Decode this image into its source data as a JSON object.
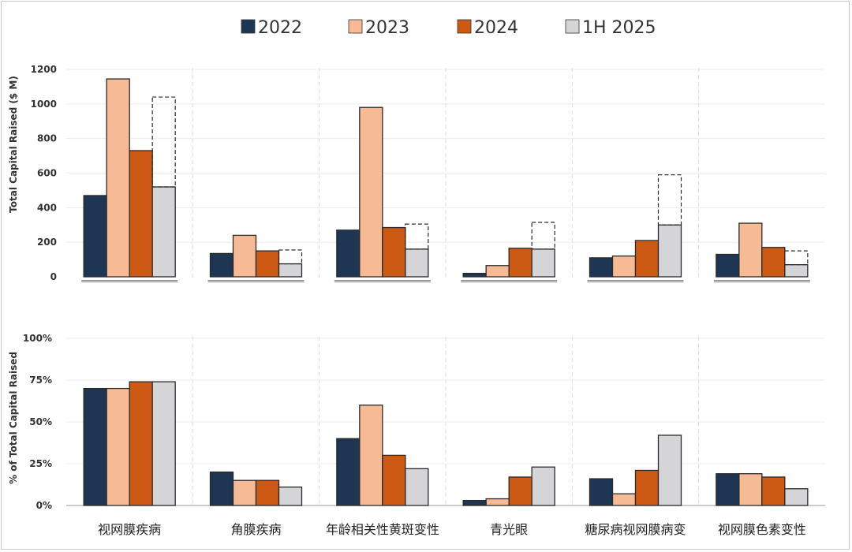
{
  "chart_data": [
    {
      "type": "bar",
      "ylabel": "Total Capital Raised ($ M)",
      "ylim": [
        0,
        1200
      ],
      "yticks": [
        "0",
        "200",
        "400",
        "600",
        "800",
        "1000",
        "1200"
      ],
      "ytick_values": [
        0,
        200,
        400,
        600,
        800,
        1000,
        1200
      ],
      "categories": [
        "视网膜疾病",
        "角膜疾病",
        "年龄相关性黄斑变性",
        "青光眼",
        "糖尿病视网膜病变",
        "视网膜色素变性"
      ],
      "series": [
        {
          "name": "2022",
          "values": [
            470,
            135,
            270,
            20,
            110,
            130
          ]
        },
        {
          "name": "2023",
          "values": [
            1145,
            240,
            980,
            65,
            120,
            310
          ]
        },
        {
          "name": "2024",
          "values": [
            730,
            150,
            285,
            165,
            210,
            170
          ]
        },
        {
          "name": "1H 2025",
          "values": [
            520,
            75,
            160,
            160,
            300,
            70
          ],
          "projected_full_year": [
            1040,
            155,
            305,
            315,
            590,
            150
          ]
        }
      ]
    },
    {
      "type": "bar",
      "ylabel": "% of Total Capital Raised",
      "ylim": [
        0,
        100
      ],
      "yticks": [
        "0%",
        "25%",
        "50%",
        "75%",
        "100%"
      ],
      "ytick_values": [
        0,
        25,
        50,
        75,
        100
      ],
      "categories": [
        "视网膜疾病",
        "角膜疾病",
        "年龄相关性黄斑变性",
        "青光眼",
        "糖尿病视网膜病变",
        "视网膜色素变性"
      ],
      "series": [
        {
          "name": "2022",
          "values": [
            70,
            20,
            40,
            3,
            16,
            19
          ]
        },
        {
          "name": "2023",
          "values": [
            70,
            15,
            60,
            4,
            7,
            19
          ]
        },
        {
          "name": "2024",
          "values": [
            74,
            15,
            30,
            17,
            21,
            17
          ]
        },
        {
          "name": "1H 2025",
          "values": [
            74,
            11,
            22,
            23,
            42,
            10
          ]
        }
      ]
    }
  ],
  "legend": {
    "placement": "top-center",
    "items": [
      {
        "label": "2022",
        "color": "#1e3553"
      },
      {
        "label": "2023",
        "color": "#f6ba94"
      },
      {
        "label": "2024",
        "color": "#cc5a14"
      },
      {
        "label": "1H 2025",
        "color": "#d5d5d7"
      }
    ]
  }
}
